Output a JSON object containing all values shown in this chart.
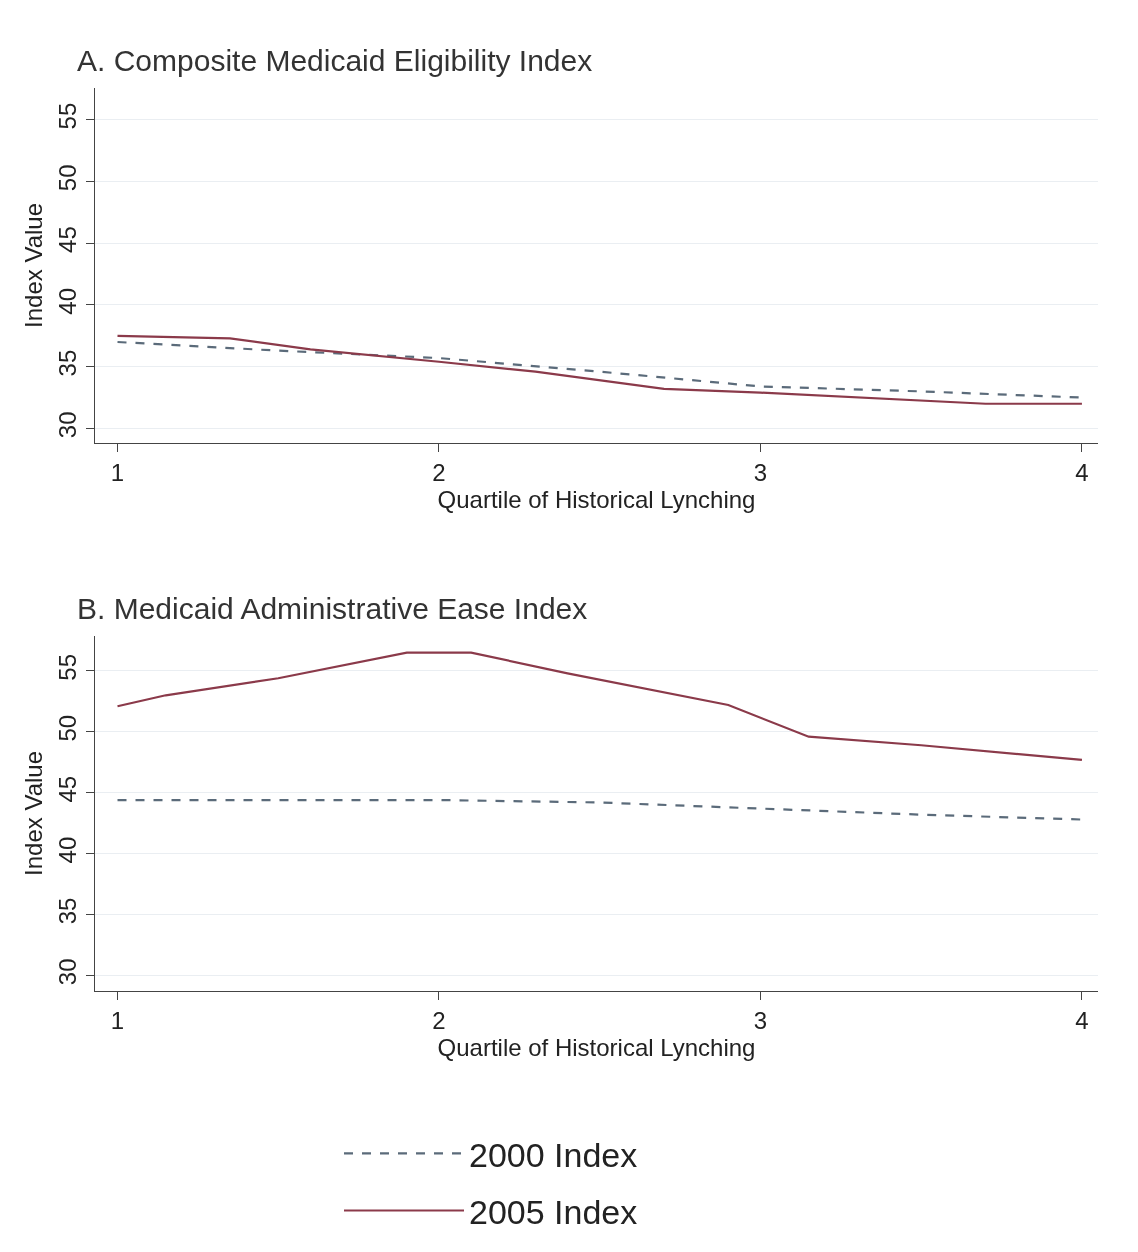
{
  "chart_data": [
    {
      "type": "line",
      "title": "A. Composite Medicaid Eligibility Index",
      "xlabel": "Quartile of Historical Lynching",
      "ylabel": "Index Value",
      "xlim": [
        0.93,
        4.05
      ],
      "xticks": [
        1,
        2,
        3,
        4
      ],
      "ylim": [
        28.8,
        57.6
      ],
      "yticks": [
        30,
        35,
        40,
        45,
        50,
        55
      ],
      "grid": "y",
      "legend": "bottom",
      "marker": "none",
      "series": [
        {
          "name": "2000 Index",
          "color": "#5b6b7a",
          "line_style": "dashed",
          "x": [
            1,
            1.5,
            2,
            2.5,
            3,
            3.5,
            4
          ],
          "values": [
            37.0,
            36.3,
            35.7,
            34.6,
            33.4,
            33.0,
            32.5
          ]
        },
        {
          "name": "2005 Index",
          "color": "#8b3a4a",
          "line_style": "solid",
          "x": [
            1,
            1.35,
            1.6,
            2,
            2.3,
            2.7,
            3,
            3.7,
            4
          ],
          "values": [
            37.5,
            37.3,
            36.4,
            35.4,
            34.6,
            33.2,
            32.9,
            32.0,
            32.0
          ]
        }
      ]
    },
    {
      "type": "line",
      "title": "B. Medicaid Administrative Ease Index",
      "xlabel": "Quartile of Historical Lynching",
      "ylabel": "Index Value",
      "xlim": [
        0.93,
        4.05
      ],
      "xticks": [
        1,
        2,
        3,
        4
      ],
      "ylim": [
        28.7,
        57.9
      ],
      "yticks": [
        30,
        35,
        40,
        45,
        50,
        55
      ],
      "grid": "y",
      "legend": "bottom",
      "marker": "none",
      "series": [
        {
          "name": "2000 Index",
          "color": "#5b6b7a",
          "line_style": "dashed",
          "x": [
            1,
            2,
            2.5,
            3,
            3.5,
            4
          ],
          "values": [
            44.4,
            44.4,
            44.2,
            43.7,
            43.2,
            42.8
          ]
        },
        {
          "name": "2005 Index",
          "color": "#8b3a4a",
          "line_style": "solid",
          "x": [
            1,
            1.15,
            1.5,
            1.9,
            2.1,
            2.4,
            2.9,
            3.15,
            3.5,
            4
          ],
          "values": [
            52.1,
            53.0,
            54.4,
            56.5,
            56.5,
            54.8,
            52.2,
            49.6,
            48.9,
            47.7
          ]
        }
      ]
    }
  ]
}
